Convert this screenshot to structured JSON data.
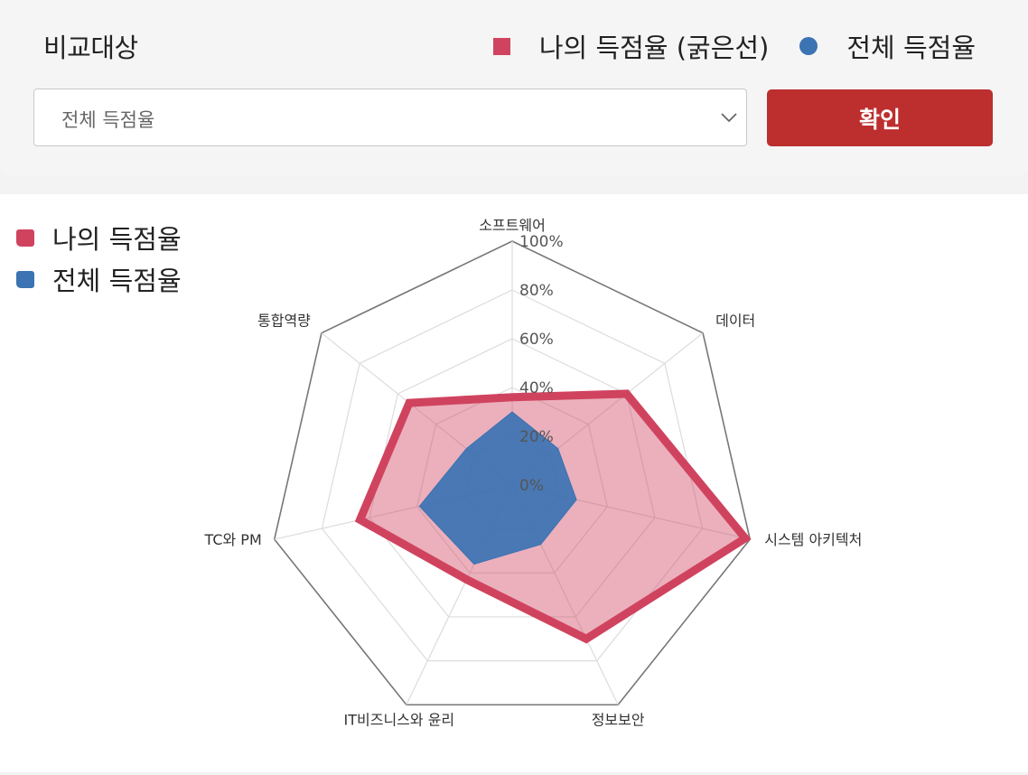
{
  "filter": {
    "label": "비교대상",
    "selected": "전체 득점율",
    "confirm_label": "확인",
    "legend": [
      {
        "name": "나의 득점율 (굵은선)",
        "color": "#d0435f",
        "shape": "square"
      },
      {
        "name": "전체 득점율",
        "color": "#3b73b3",
        "shape": "circle"
      }
    ]
  },
  "chart_legend": [
    {
      "name": "나의 득점율",
      "color": "#d0435f"
    },
    {
      "name": "전체 득점율",
      "color": "#3b73b3"
    }
  ],
  "chart_data": {
    "type": "radar",
    "categories": [
      "소프트웨어",
      "데이터",
      "시스템 아키텍처",
      "정보보안",
      "IT비즈니스와 윤리",
      "TC와 PM",
      "통합역량"
    ],
    "tick_labels": [
      "0%",
      "20%",
      "40%",
      "60%",
      "80%",
      "100%"
    ],
    "rlim": [
      0,
      100
    ],
    "grid": true,
    "series": [
      {
        "name": "나의 득점율",
        "color": "#d0435f",
        "values": [
          36,
          60,
          98,
          70,
          43,
          64,
          54
        ]
      },
      {
        "name": "전체 득점율",
        "color": "#3b73b3",
        "values": [
          30,
          24,
          27,
          27,
          36,
          39,
          24
        ]
      }
    ]
  }
}
